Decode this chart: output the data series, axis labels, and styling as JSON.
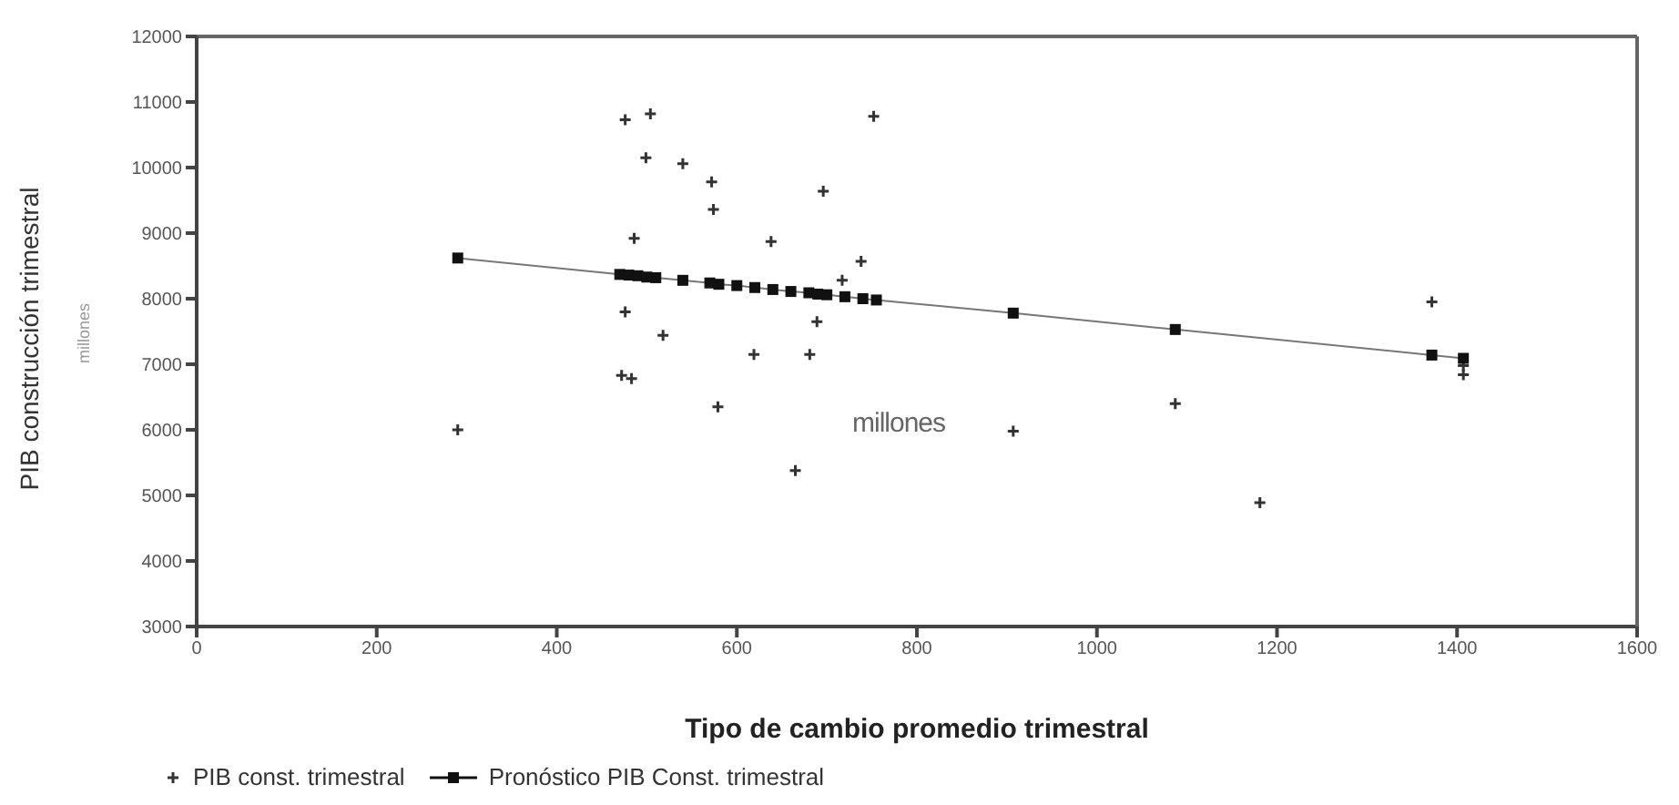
{
  "chart_data": {
    "type": "scatter",
    "xlabel": "Tipo de cambio promedio trimestral",
    "ylabel": "PIB construcción trimestral",
    "annotations": [
      "millones",
      "millones"
    ],
    "xlim": [
      0,
      1600
    ],
    "xticks": [
      0,
      200,
      400,
      600,
      800,
      1000,
      1200,
      1400,
      1600
    ],
    "ylim": [
      3000,
      12000
    ],
    "yticks": [
      3000,
      4000,
      5000,
      6000,
      7000,
      8000,
      9000,
      10000,
      11000,
      12000
    ],
    "grid": false,
    "legend": "bottom",
    "series": [
      {
        "name": "PIB const. trimestral",
        "marker": "cross",
        "color": "#333333",
        "x": [
          290,
          476,
          504,
          499,
          540,
          572,
          574,
          486,
          638,
          476,
          518,
          472,
          483,
          619,
          681,
          689,
          579,
          665,
          696,
          752,
          738,
          717,
          907,
          1087,
          1181,
          1372,
          1407,
          1407
        ],
        "values": [
          6000,
          10730,
          10820,
          10150,
          10060,
          9780,
          9360,
          8920,
          8870,
          7800,
          7440,
          6830,
          6780,
          7150,
          7150,
          7650,
          6350,
          5380,
          9640,
          10780,
          8570,
          8280,
          5980,
          6400,
          4890,
          7950,
          6840,
          6980
        ]
      },
      {
        "name": "Pronóstico PIB Const. trimestral",
        "type": "line",
        "marker": "square",
        "line_style": "solid",
        "color": "#111111",
        "x": [
          290,
          470,
          480,
          490,
          500,
          510,
          540,
          570,
          580,
          600,
          620,
          640,
          660,
          680,
          690,
          700,
          720,
          740,
          755,
          907,
          1087,
          1372,
          1407
        ],
        "values": [
          8620,
          8370,
          8360,
          8350,
          8330,
          8320,
          8280,
          8240,
          8220,
          8200,
          8170,
          8140,
          8110,
          8090,
          8070,
          8060,
          8030,
          8000,
          7980,
          7780,
          7530,
          7140,
          7090
        ]
      }
    ]
  }
}
